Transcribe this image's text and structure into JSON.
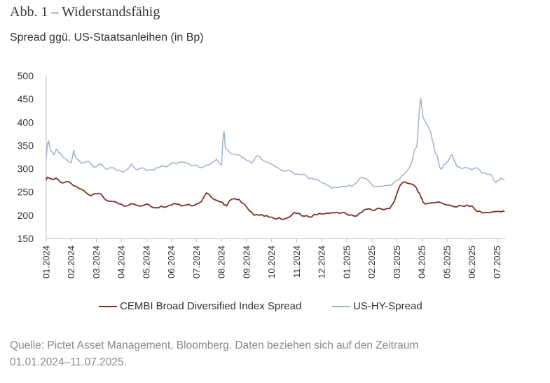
{
  "header": {
    "title": "Abb. 1 – Widerstandsfähig",
    "subtitle": "Spread ggü. US-Staatsanleihen (in Bp)"
  },
  "footer": {
    "source_line1": "Quelle: Pictet Asset Management, Bloomberg. Daten beziehen sich auf den Zeitraum",
    "source_line2": "01.01.2024–11.07.2025."
  },
  "colors": {
    "cembi": "#7a3028",
    "ushy": "#9fb2cc",
    "axis": "#bfbfbf"
  },
  "chart_data": {
    "type": "line",
    "title": "Abb. 1 – Widerstandsfähig",
    "subtitle": "Spread ggü. US-Staatsanleihen (in Bp)",
    "xlabel": "",
    "ylabel": "",
    "ylim": [
      150,
      500
    ],
    "yticks": [
      150,
      200,
      250,
      300,
      350,
      400,
      450,
      500
    ],
    "grid": false,
    "legend_position": "bottom",
    "xticks": [
      "01.2024",
      "02.2024",
      "03.2024",
      "04.2024",
      "05.2024",
      "06.2024",
      "07.2024",
      "08.2024",
      "09.2024",
      "10.2024",
      "11.2024",
      "12.2024",
      "01.2025",
      "02.2025",
      "03.2025",
      "04.2025",
      "05.2025",
      "06.2025",
      "07.2025"
    ],
    "x_range": [
      0,
      18.35
    ],
    "series": [
      {
        "name": "CEMBI Broad Diversified Index Spread",
        "color": "#7a3028",
        "x": [
          0,
          0.05,
          0.2,
          0.4,
          0.6,
          0.8,
          1.0,
          1.2,
          1.4,
          1.6,
          1.8,
          2.0,
          2.2,
          2.4,
          2.6,
          2.8,
          3.0,
          3.2,
          3.4,
          3.6,
          3.8,
          4.0,
          4.2,
          4.4,
          4.6,
          4.8,
          5.0,
          5.2,
          5.4,
          5.6,
          5.8,
          6.0,
          6.2,
          6.4,
          6.6,
          6.8,
          7.0,
          7.1,
          7.2,
          7.3,
          7.5,
          7.7,
          7.9,
          8.1,
          8.3,
          8.5,
          8.7,
          8.9,
          9.1,
          9.3,
          9.5,
          9.7,
          9.9,
          10.1,
          10.3,
          10.5,
          10.7,
          10.9,
          11.1,
          11.3,
          11.5,
          11.7,
          11.9,
          12.1,
          12.3,
          12.5,
          12.7,
          12.9,
          13.1,
          13.3,
          13.5,
          13.7,
          13.9,
          14.1,
          14.3,
          14.5,
          14.7,
          14.85,
          14.95,
          15.05,
          15.2,
          15.4,
          15.6,
          15.8,
          16.0,
          16.2,
          16.4,
          16.6,
          16.8,
          17.0,
          17.2,
          17.4,
          17.6,
          17.8,
          18.0,
          18.15,
          18.3
        ],
        "values": [
          275,
          282,
          278,
          280,
          270,
          272,
          268,
          262,
          256,
          248,
          242,
          246,
          245,
          232,
          230,
          228,
          224,
          220,
          225,
          222,
          220,
          224,
          218,
          216,
          220,
          218,
          222,
          224,
          220,
          222,
          220,
          224,
          230,
          248,
          238,
          232,
          228,
          222,
          220,
          230,
          236,
          234,
          224,
          210,
          200,
          200,
          198,
          196,
          193,
          195,
          192,
          196,
          206,
          204,
          198,
          196,
          202,
          204,
          203,
          204,
          205,
          204,
          206,
          200,
          198,
          204,
          212,
          214,
          210,
          215,
          212,
          214,
          230,
          262,
          272,
          268,
          264,
          250,
          240,
          228,
          225,
          227,
          228,
          226,
          222,
          220,
          218,
          220,
          222,
          220,
          208,
          205,
          206,
          207,
          208,
          207,
          208
        ]
      },
      {
        "name": "US-HY-Spread",
        "color": "#9fb2cc",
        "x": [
          0,
          0.05,
          0.1,
          0.15,
          0.2,
          0.3,
          0.4,
          0.5,
          0.6,
          0.8,
          1.0,
          1.1,
          1.2,
          1.4,
          1.6,
          1.8,
          2.0,
          2.2,
          2.4,
          2.6,
          2.8,
          3.0,
          3.2,
          3.4,
          3.6,
          3.8,
          4.0,
          4.2,
          4.4,
          4.6,
          4.8,
          5.0,
          5.2,
          5.4,
          5.6,
          5.8,
          6.0,
          6.2,
          6.4,
          6.6,
          6.8,
          7.0,
          7.05,
          7.1,
          7.15,
          7.25,
          7.4,
          7.6,
          7.8,
          8.0,
          8.2,
          8.4,
          8.6,
          8.8,
          9.0,
          9.2,
          9.4,
          9.6,
          9.8,
          10.0,
          10.2,
          10.4,
          10.6,
          10.8,
          11.0,
          11.2,
          11.4,
          11.6,
          11.8,
          12.0,
          12.2,
          12.4,
          12.6,
          12.8,
          13.0,
          13.2,
          13.4,
          13.6,
          13.8,
          14.0,
          14.2,
          14.4,
          14.6,
          14.7,
          14.8,
          14.9,
          14.95,
          15.05,
          15.2,
          15.3,
          15.4,
          15.5,
          15.6,
          15.7,
          15.8,
          15.9,
          16.0,
          16.1,
          16.2,
          16.4,
          16.6,
          16.8,
          17.0,
          17.2,
          17.4,
          17.6,
          17.8,
          17.95,
          18.05,
          18.15,
          18.3
        ],
        "values": [
          322,
          355,
          360,
          345,
          338,
          330,
          342,
          335,
          330,
          320,
          313,
          340,
          322,
          312,
          315,
          310,
          304,
          310,
          298,
          302,
          296,
          294,
          298,
          310,
          298,
          302,
          296,
          298,
          302,
          306,
          304,
          312,
          310,
          314,
          312,
          306,
          308,
          302,
          308,
          312,
          320,
          308,
          360,
          380,
          345,
          340,
          332,
          330,
          325,
          318,
          312,
          328,
          320,
          315,
          310,
          303,
          296,
          296,
          294,
          289,
          287,
          284,
          280,
          278,
          270,
          265,
          258,
          260,
          262,
          262,
          262,
          270,
          282,
          278,
          266,
          262,
          262,
          264,
          265,
          275,
          285,
          295,
          315,
          340,
          350,
          430,
          452,
          410,
          395,
          385,
          365,
          340,
          330,
          305,
          300,
          310,
          315,
          322,
          330,
          305,
          300,
          302,
          298,
          302,
          290,
          288,
          285,
          270,
          275,
          280,
          278
        ]
      }
    ]
  }
}
